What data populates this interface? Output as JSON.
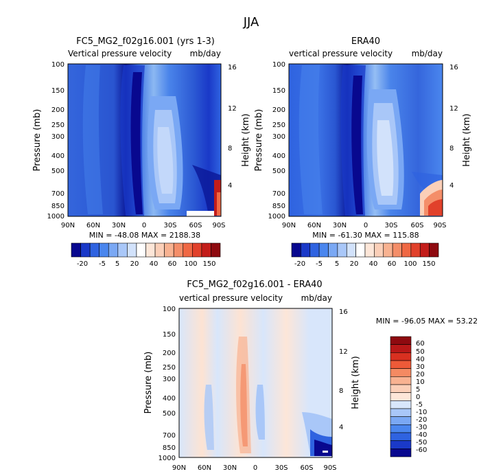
{
  "figure": {
    "season": "JJA"
  },
  "chart_data": [
    {
      "type": "heatmap",
      "title": "FC5_MG2_f02g16.001 (yrs 1-3)",
      "subtitle_left": "Vertical pressure velocity",
      "subtitle_right": "mb/day",
      "ylabel": "Pressure (mb)",
      "ylabel_right": "Height (km)",
      "x_ticks": [
        "90N",
        "60N",
        "30N",
        "0",
        "30S",
        "60S",
        "90S"
      ],
      "y_ticks": [
        "100",
        "150",
        "200",
        "250",
        "300",
        "400",
        "500",
        "700",
        "850",
        "1000"
      ],
      "y_right_ticks": [
        "16",
        "12",
        "8",
        "4"
      ],
      "stats": "MIN = -48.08   MAX = 2188.38",
      "colorbar_labels": [
        "-20",
        "-5",
        "5",
        "20",
        "40",
        "60",
        "100",
        "150"
      ],
      "colorbar_levels": [
        -30,
        -20,
        -10,
        -5,
        0,
        5,
        10,
        20,
        30,
        40,
        50,
        60,
        80,
        100,
        125,
        150
      ],
      "colorbar_colors": [
        "#08088f",
        "#1a39c8",
        "#2f63e0",
        "#4a86ee",
        "#7aa8f4",
        "#a9c7f8",
        "#d2e2fb",
        "#ffffff",
        "#fde6d8",
        "#fbcfb8",
        "#f8b291",
        "#f48e69",
        "#ef6844",
        "#e1412b",
        "#c31d1a",
        "#8e0a10"
      ]
    },
    {
      "type": "heatmap",
      "title": "ERA40",
      "subtitle_left": "vertical pressure velocity",
      "subtitle_right": "mb/day",
      "ylabel": "Pressure (mb)",
      "ylabel_right": "Height (km)",
      "x_ticks": [
        "90N",
        "60N",
        "30N",
        "0",
        "30S",
        "60S",
        "90S"
      ],
      "y_ticks": [
        "100",
        "150",
        "200",
        "250",
        "300",
        "400",
        "500",
        "700",
        "850",
        "1000"
      ],
      "y_right_ticks": [
        "16",
        "12",
        "8",
        "4"
      ],
      "stats": "MIN = -61.30   MAX = 115.88",
      "colorbar_labels": [
        "-20",
        "-5",
        "5",
        "20",
        "40",
        "60",
        "100",
        "150"
      ],
      "colorbar_levels": [
        -30,
        -20,
        -10,
        -5,
        0,
        5,
        10,
        20,
        30,
        40,
        50,
        60,
        80,
        100,
        125,
        150
      ],
      "colorbar_colors": [
        "#08088f",
        "#1a39c8",
        "#2f63e0",
        "#4a86ee",
        "#7aa8f4",
        "#a9c7f8",
        "#d2e2fb",
        "#ffffff",
        "#fde6d8",
        "#fbcfb8",
        "#f8b291",
        "#f48e69",
        "#ef6844",
        "#e1412b",
        "#c31d1a",
        "#8e0a10"
      ]
    },
    {
      "type": "heatmap",
      "title": "FC5_MG2_f02g16.001 - ERA40",
      "subtitle_left": "vertical pressure velocity",
      "subtitle_right": "mb/day",
      "ylabel": "Pressure (mb)",
      "ylabel_right": "Height (km)",
      "x_ticks": [
        "90N",
        "60N",
        "30N",
        "0",
        "30S",
        "60S",
        "90S"
      ],
      "y_ticks": [
        "100",
        "150",
        "200",
        "250",
        "300",
        "400",
        "500",
        "700",
        "850",
        "1000"
      ],
      "y_right_ticks": [
        "16",
        "12",
        "8",
        "4"
      ],
      "stats": "MIN = -96.05   MAX =  53.22",
      "colorbar_labels": [
        "60",
        "50",
        "40",
        "30",
        "20",
        "10",
        "5",
        "0",
        "-5",
        "-10",
        "-20",
        "-30",
        "-40",
        "-50",
        "-60"
      ],
      "colorbar_colors": [
        "#8e0a10",
        "#b81818",
        "#d83020",
        "#ee5a38",
        "#f48a62",
        "#f8b291",
        "#fbcfb8",
        "#fde6d8",
        "#d8e6fb",
        "#a9c7f8",
        "#7aa8f4",
        "#4a86ee",
        "#2f63e0",
        "#1a39c8",
        "#08088f"
      ]
    }
  ]
}
